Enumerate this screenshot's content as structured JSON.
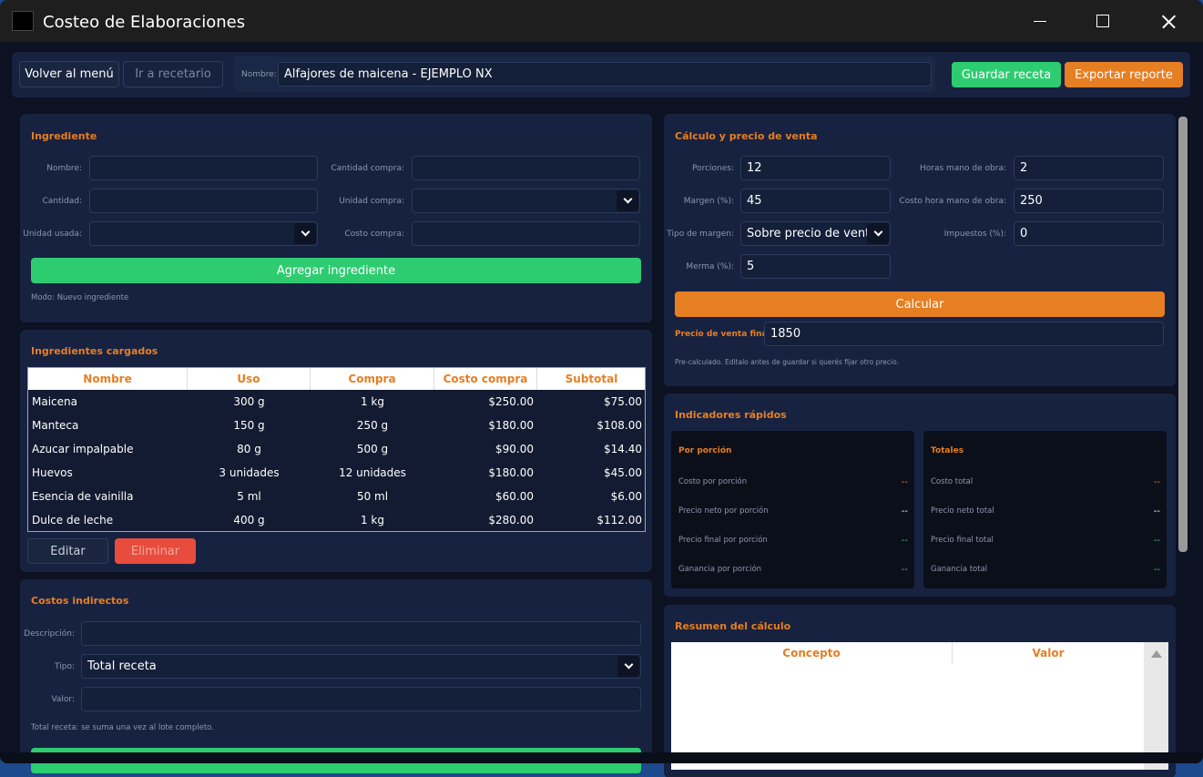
{
  "window": {
    "title": "Costeo de Elaboraciones"
  },
  "toolbar": {
    "back": "Volver al menú",
    "recipes": "Ir a recetario",
    "name_label": "Nombre:",
    "name_value": "Alfajores de maicena - EJEMPLO NX",
    "save": "Guardar receta",
    "export": "Exportar reporte"
  },
  "ingredient": {
    "title": "Ingrediente",
    "fields_left": [
      {
        "label": "Nombre:"
      },
      {
        "label": "Cantidad:"
      },
      {
        "label": "Unidad usada:",
        "dropdown": true
      }
    ],
    "fields_right": [
      {
        "label": "Cantidad compra:"
      },
      {
        "label": "Unidad compra:",
        "dropdown": true
      },
      {
        "label": "Costo compra:"
      }
    ],
    "add": "Agregar ingrediente",
    "mode": "Modo: Nuevo ingrediente"
  },
  "loaded": {
    "title": "Ingredientes cargados",
    "columns": [
      "Nombre",
      "Uso",
      "Compra",
      "Costo compra",
      "Subtotal"
    ],
    "rows": [
      [
        "Maicena",
        "300 g",
        "1 kg",
        "$250.00",
        "$75.00"
      ],
      [
        "Manteca",
        "150 g",
        "250 g",
        "$180.00",
        "$108.00"
      ],
      [
        "Azucar impalpable",
        "80 g",
        "500 g",
        "$90.00",
        "$14.40"
      ],
      [
        "Huevos",
        "3 unidades",
        "12 unidades",
        "$180.00",
        "$45.00"
      ],
      [
        "Esencia de vainilla",
        "5 ml",
        "50 ml",
        "$60.00",
        "$6.00"
      ],
      [
        "Dulce de leche",
        "400 g",
        "1 kg",
        "$280.00",
        "$112.00"
      ]
    ],
    "edit": "Editar",
    "delete": "Eliminar"
  },
  "indirect": {
    "title": "Costos indirectos",
    "fields": [
      {
        "label": "Descripción:"
      },
      {
        "label": "Tipo:",
        "value": "Total receta",
        "dropdown": true
      },
      {
        "label": "Valor:"
      }
    ],
    "note": "Total receta: se suma una vez al lote completo."
  },
  "calc": {
    "title": "Cálculo y precio de venta",
    "fields_left": [
      {
        "label": "Porciones:",
        "value": 12
      },
      {
        "label": "Margen (%):",
        "value": 45
      },
      {
        "label": "Tipo de margen:",
        "value": "Sobre precio de venta",
        "dropdown": true
      },
      {
        "label": "Merma (%):",
        "value": 5
      }
    ],
    "fields_right": [
      {
        "label": "Horas mano de obra:",
        "value": 2
      },
      {
        "label": "Costo hora mano de obra:",
        "value": 250
      },
      {
        "label": "Impuestos (%):",
        "value": 0
      }
    ],
    "button": "Calcular",
    "final_label": "Precio de venta final:",
    "final_value": 1850,
    "note": "Pre-calculado. Editalo antes de guardar si querés fijar otro precio."
  },
  "indicators": {
    "title": "Indicadores rápidos",
    "groups": [
      {
        "title": "Por porción",
        "rows": [
          {
            "label": "Costo por porción",
            "value": "--"
          },
          {
            "label": "Precio neto por porción",
            "value": "--"
          },
          {
            "label": "Precio final por porción",
            "value": "--"
          },
          {
            "label": "Ganancia por porción",
            "value": "--"
          }
        ]
      },
      {
        "title": "Totales",
        "rows": [
          {
            "label": "Costo total",
            "value": "--"
          },
          {
            "label": "Precio neto total",
            "value": "--"
          },
          {
            "label": "Precio final total",
            "value": "--"
          },
          {
            "label": "Ganancia total",
            "value": "--"
          }
        ]
      }
    ]
  },
  "summary": {
    "title": "Resumen del cálculo",
    "columns": [
      "Concepto",
      "Valor"
    ]
  }
}
